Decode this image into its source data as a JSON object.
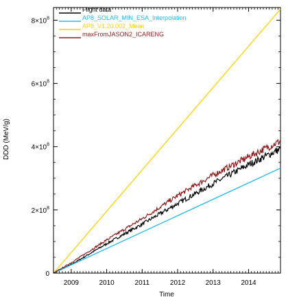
{
  "chart_data": {
    "type": "line",
    "xlabel": "Time",
    "ylabel": "DDD (MeV/g)",
    "xlim": [
      2008.5,
      2014.9
    ],
    "ylim": [
      0,
      8.4
    ],
    "x_ticks": [
      {
        "value": 2009,
        "label": "2009"
      },
      {
        "value": 2010,
        "label": "2010"
      },
      {
        "value": 2011,
        "label": "2011"
      },
      {
        "value": 2012,
        "label": "2012"
      },
      {
        "value": 2013,
        "label": "2013"
      },
      {
        "value": 2014,
        "label": "2014"
      }
    ],
    "y_ticks": [
      {
        "value": 0,
        "mantissa": "0",
        "exp": ""
      },
      {
        "value": 2,
        "mantissa": "2×10",
        "exp": "8"
      },
      {
        "value": 4,
        "mantissa": "4×10",
        "exp": "8"
      },
      {
        "value": 6,
        "mantissa": "6×10",
        "exp": "8"
      },
      {
        "value": 8,
        "mantissa": "8×10",
        "exp": "8"
      }
    ],
    "y_unit_multiplier": "10^8",
    "legend_position": "top-left",
    "series": [
      {
        "name": "Flight data",
        "color": "#000000",
        "noisy": true,
        "x": [
          2008.5,
          2009.0,
          2010.0,
          2011.0,
          2012.0,
          2013.0,
          2014.0,
          2014.9
        ],
        "y": [
          0.0,
          0.27,
          0.93,
          1.55,
          2.2,
          2.83,
          3.43,
          3.93
        ]
      },
      {
        "name": "AP8_SOLAR_MIN_ESA_Interpolation",
        "color": "#22b8ee",
        "noisy": false,
        "x": [
          2008.5,
          2014.9
        ],
        "y": [
          0.0,
          3.32
        ]
      },
      {
        "name": "AP8_V1.20.002_Mean",
        "color": "#ffd200",
        "noisy": false,
        "x": [
          2008.5,
          2014.9
        ],
        "y": [
          0.0,
          8.35
        ]
      },
      {
        "name": "maxFromJASON2_ICARENG",
        "color": "#8b1a1a",
        "noisy": true,
        "x": [
          2008.5,
          2009.0,
          2010.0,
          2011.0,
          2012.0,
          2013.0,
          2014.0,
          2014.9
        ],
        "y": [
          0.0,
          0.33,
          1.05,
          1.72,
          2.45,
          3.1,
          3.68,
          4.18
        ]
      }
    ]
  }
}
